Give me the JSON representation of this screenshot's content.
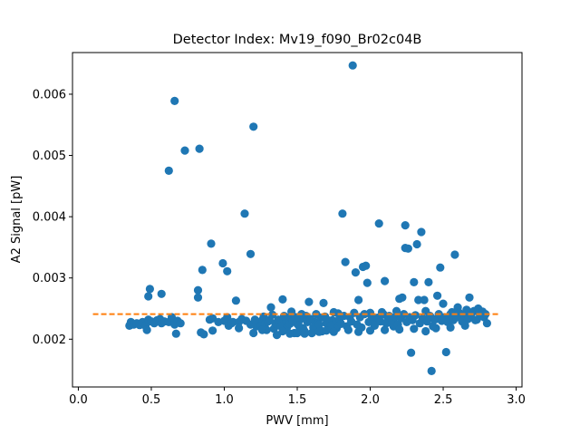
{
  "chart_data": {
    "type": "scatter",
    "title": "Detector Index: Mv19_f090_Br02c04B",
    "xlabel": "PWV [mm]",
    "ylabel": "A2 Signal [pW]",
    "xlim": [
      -0.04,
      3.04
    ],
    "ylim": [
      0.00122,
      0.00668
    ],
    "xticks": [
      0.0,
      0.5,
      1.0,
      1.5,
      2.0,
      2.5,
      3.0
    ],
    "xtick_labels": [
      "0.0",
      "0.5",
      "1.0",
      "1.5",
      "2.0",
      "2.5",
      "3.0"
    ],
    "yticks": [
      0.002,
      0.003,
      0.004,
      0.005,
      0.006
    ],
    "ytick_labels": [
      "0.002",
      "0.003",
      "0.004",
      "0.005",
      "0.006"
    ],
    "grid": false,
    "colors": {
      "points": "#1f77b4",
      "fit": "#ff7f0e"
    },
    "fit_line": {
      "x": [
        0.1,
        2.88
      ],
      "y": [
        0.00241,
        0.00241
      ],
      "style": "dashed"
    },
    "series": [
      {
        "name": "data",
        "points": [
          [
            0.35,
            0.00222
          ],
          [
            0.36,
            0.00228
          ],
          [
            0.38,
            0.00224
          ],
          [
            0.4,
            0.00226
          ],
          [
            0.42,
            0.00223
          ],
          [
            0.44,
            0.00228
          ],
          [
            0.46,
            0.00222
          ],
          [
            0.47,
            0.00215
          ],
          [
            0.48,
            0.00232
          ],
          [
            0.5,
            0.00229
          ],
          [
            0.52,
            0.00226
          ],
          [
            0.54,
            0.00231
          ],
          [
            0.56,
            0.00233
          ],
          [
            0.57,
            0.00226
          ],
          [
            0.59,
            0.00229
          ],
          [
            0.62,
            0.00228
          ],
          [
            0.64,
            0.00236
          ],
          [
            0.66,
            0.00224
          ],
          [
            0.67,
            0.00209
          ],
          [
            0.68,
            0.0023
          ],
          [
            0.7,
            0.00226
          ],
          [
            0.48,
            0.0027
          ],
          [
            0.49,
            0.00282
          ],
          [
            0.57,
            0.00274
          ],
          [
            0.62,
            0.00475
          ],
          [
            0.66,
            0.00589
          ],
          [
            0.73,
            0.00508
          ],
          [
            0.83,
            0.00511
          ],
          [
            0.82,
            0.00268
          ],
          [
            0.82,
            0.0028
          ],
          [
            0.85,
            0.00313
          ],
          [
            0.91,
            0.00356
          ],
          [
            0.84,
            0.00211
          ],
          [
            0.86,
            0.00208
          ],
          [
            0.9,
            0.00232
          ],
          [
            0.92,
            0.00234
          ],
          [
            0.92,
            0.00214
          ],
          [
            0.96,
            0.00228
          ],
          [
            0.99,
            0.00324
          ],
          [
            1.02,
            0.00311
          ],
          [
            1.02,
            0.00236
          ],
          [
            1.06,
            0.00228
          ],
          [
            1.08,
            0.00263
          ],
          [
            1.12,
            0.00233
          ],
          [
            1.14,
            0.00405
          ],
          [
            1.18,
            0.00339
          ],
          [
            1.2,
            0.00547
          ],
          [
            1.22,
            0.00221
          ],
          [
            1.24,
            0.00227
          ],
          [
            1.26,
            0.00231
          ],
          [
            1.28,
            0.00225
          ],
          [
            1.3,
            0.00229
          ],
          [
            1.32,
            0.00252
          ],
          [
            1.34,
            0.00217
          ],
          [
            1.36,
            0.00207
          ],
          [
            1.38,
            0.00222
          ],
          [
            1.4,
            0.00265
          ],
          [
            1.42,
            0.00228
          ],
          [
            1.44,
            0.00235
          ],
          [
            1.46,
            0.00245
          ],
          [
            1.48,
            0.0021
          ],
          [
            1.5,
            0.00225
          ],
          [
            1.52,
            0.00232
          ],
          [
            1.54,
            0.00218
          ],
          [
            1.56,
            0.00238
          ],
          [
            1.58,
            0.00261
          ],
          [
            1.6,
            0.0021
          ],
          [
            1.62,
            0.00228
          ],
          [
            1.64,
            0.00219
          ],
          [
            1.66,
            0.00235
          ],
          [
            1.68,
            0.00259
          ],
          [
            1.7,
            0.00226
          ],
          [
            1.72,
            0.00218
          ],
          [
            1.74,
            0.00231
          ],
          [
            1.76,
            0.00229
          ],
          [
            1.78,
            0.00242
          ],
          [
            1.81,
            0.00405
          ],
          [
            1.83,
            0.00326
          ],
          [
            1.88,
            0.00647
          ],
          [
            1.9,
            0.00309
          ],
          [
            1.92,
            0.00264
          ],
          [
            1.95,
            0.00318
          ],
          [
            1.97,
            0.0032
          ],
          [
            1.98,
            0.00292
          ],
          [
            2.0,
            0.00243
          ],
          [
            2.04,
            0.00232
          ],
          [
            2.06,
            0.00389
          ],
          [
            2.08,
            0.00244
          ],
          [
            2.1,
            0.00295
          ],
          [
            2.12,
            0.00236
          ],
          [
            2.14,
            0.00227
          ],
          [
            2.16,
            0.00221
          ],
          [
            2.18,
            0.00246
          ],
          [
            2.2,
            0.00266
          ],
          [
            2.22,
            0.00268
          ],
          [
            2.24,
            0.00349
          ],
          [
            2.24,
            0.00386
          ],
          [
            2.26,
            0.00348
          ],
          [
            2.28,
            0.00178
          ],
          [
            2.3,
            0.00293
          ],
          [
            2.32,
            0.00355
          ],
          [
            2.33,
            0.00264
          ],
          [
            2.35,
            0.00375
          ],
          [
            2.37,
            0.00264
          ],
          [
            2.38,
            0.00246
          ],
          [
            2.4,
            0.00293
          ],
          [
            2.42,
            0.00148
          ],
          [
            2.44,
            0.00232
          ],
          [
            2.46,
            0.00271
          ],
          [
            2.48,
            0.00317
          ],
          [
            2.5,
            0.00258
          ],
          [
            2.52,
            0.00179
          ],
          [
            2.54,
            0.00232
          ],
          [
            2.56,
            0.00244
          ],
          [
            2.58,
            0.00338
          ],
          [
            2.6,
            0.00252
          ],
          [
            2.64,
            0.00238
          ],
          [
            2.68,
            0.00268
          ],
          [
            2.7,
            0.00244
          ],
          [
            2.72,
            0.00231
          ],
          [
            2.75,
            0.00242
          ],
          [
            2.78,
            0.00236
          ],
          [
            2.8,
            0.00226
          ],
          [
            1.0,
            0.0023
          ],
          [
            1.03,
            0.00222
          ],
          [
            1.05,
            0.00226
          ],
          [
            1.1,
            0.00228
          ],
          [
            1.15,
            0.0023
          ],
          [
            1.18,
            0.00224
          ],
          [
            1.21,
            0.00232
          ],
          [
            1.25,
            0.00221
          ],
          [
            1.27,
            0.00237
          ],
          [
            1.29,
            0.00215
          ],
          [
            1.31,
            0.00231
          ],
          [
            1.33,
            0.0024
          ],
          [
            1.35,
            0.00226
          ],
          [
            1.37,
            0.00232
          ],
          [
            1.39,
            0.00221
          ],
          [
            1.41,
            0.00238
          ],
          [
            1.43,
            0.00219
          ],
          [
            1.45,
            0.00225
          ],
          [
            1.47,
            0.0023
          ],
          [
            1.49,
            0.00236
          ],
          [
            1.51,
            0.00222
          ],
          [
            1.53,
            0.00241
          ],
          [
            1.55,
            0.00213
          ],
          [
            1.57,
            0.00228
          ],
          [
            1.59,
            0.00233
          ],
          [
            1.61,
            0.00219
          ],
          [
            1.63,
            0.00241
          ],
          [
            1.65,
            0.00224
          ],
          [
            1.67,
            0.00213
          ],
          [
            1.69,
            0.00237
          ],
          [
            1.71,
            0.00231
          ],
          [
            1.73,
            0.00222
          ],
          [
            1.75,
            0.00244
          ],
          [
            1.77,
            0.00218
          ],
          [
            1.79,
            0.00233
          ],
          [
            1.8,
            0.00225
          ],
          [
            1.82,
            0.00238
          ],
          [
            1.84,
            0.00221
          ],
          [
            1.86,
            0.00236
          ],
          [
            1.87,
            0.00229
          ],
          [
            1.89,
            0.00243
          ],
          [
            1.91,
            0.00224
          ],
          [
            1.93,
            0.00236
          ],
          [
            1.94,
            0.00219
          ],
          [
            1.96,
            0.00241
          ],
          [
            1.99,
            0.00228
          ],
          [
            2.01,
            0.00237
          ],
          [
            2.03,
            0.00222
          ],
          [
            2.05,
            0.00235
          ],
          [
            2.07,
            0.00229
          ],
          [
            2.09,
            0.00241
          ],
          [
            2.11,
            0.00226
          ],
          [
            2.13,
            0.00238
          ],
          [
            2.15,
            0.0023
          ],
          [
            2.17,
            0.00236
          ],
          [
            2.19,
            0.00224
          ],
          [
            2.21,
            0.00234
          ],
          [
            2.23,
            0.00241
          ],
          [
            2.25,
            0.00228
          ],
          [
            2.27,
            0.00236
          ],
          [
            2.29,
            0.00231
          ],
          [
            2.31,
            0.00239
          ],
          [
            2.34,
            0.00226
          ],
          [
            2.36,
            0.00234
          ],
          [
            2.39,
            0.00229
          ],
          [
            2.41,
            0.00238
          ],
          [
            2.43,
            0.00221
          ],
          [
            2.45,
            0.00233
          ],
          [
            2.47,
            0.00241
          ],
          [
            2.49,
            0.0023
          ],
          [
            2.51,
            0.00236
          ],
          [
            2.53,
            0.00228
          ],
          [
            2.55,
            0.00241
          ],
          [
            2.57,
            0.00231
          ],
          [
            2.59,
            0.00236
          ],
          [
            2.61,
            0.00243
          ],
          [
            2.63,
            0.00229
          ],
          [
            2.65,
            0.00238
          ],
          [
            2.66,
            0.00248
          ],
          [
            2.67,
            0.00233
          ],
          [
            2.69,
            0.0024
          ],
          [
            2.71,
            0.00246
          ],
          [
            2.73,
            0.00232
          ],
          [
            2.74,
            0.0025
          ],
          [
            2.76,
            0.00238
          ],
          [
            2.77,
            0.00245
          ],
          [
            2.79,
            0.00241
          ],
          [
            1.1,
            0.00218
          ],
          [
            1.2,
            0.0021
          ],
          [
            1.26,
            0.00215
          ],
          [
            1.4,
            0.00213
          ],
          [
            1.45,
            0.00209
          ],
          [
            1.5,
            0.0021
          ],
          [
            1.55,
            0.00209
          ],
          [
            1.6,
            0.0021
          ],
          [
            1.65,
            0.00212
          ],
          [
            1.7,
            0.00214
          ],
          [
            1.75,
            0.00212
          ],
          [
            1.85,
            0.00215
          ],
          [
            1.92,
            0.00212
          ],
          [
            2.0,
            0.00214
          ],
          [
            2.1,
            0.00215
          ],
          [
            2.2,
            0.00216
          ],
          [
            2.3,
            0.00217
          ],
          [
            2.38,
            0.00213
          ],
          [
            2.45,
            0.00218
          ],
          [
            2.55,
            0.00219
          ],
          [
            2.65,
            0.00222
          ]
        ]
      }
    ]
  }
}
